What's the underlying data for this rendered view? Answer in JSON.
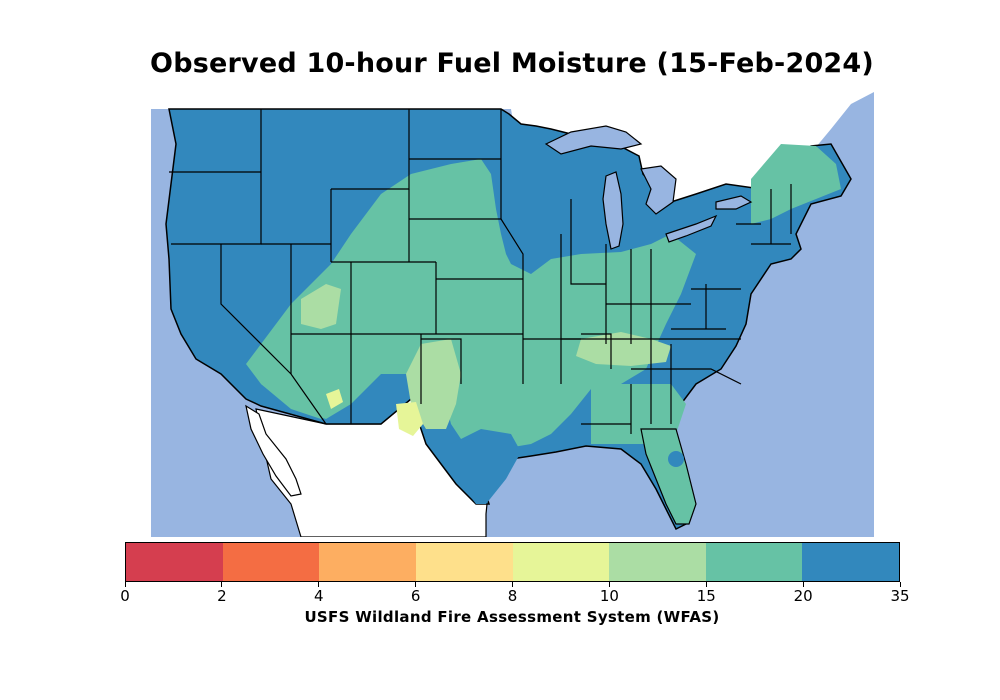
{
  "title": "Observed 10-hour Fuel Moisture (15-Feb-2024)",
  "colors": {
    "water": "#98b5e1",
    "land_outside": "#ffffff",
    "border": "#000000"
  },
  "colorbar": {
    "label": "USFS Wildland Fire Assessment System (WFAS)",
    "bins": [
      {
        "from": "0",
        "to": "2",
        "color": "#d53e4f"
      },
      {
        "from": "2",
        "to": "4",
        "color": "#f46d43"
      },
      {
        "from": "4",
        "to": "6",
        "color": "#fdae61"
      },
      {
        "from": "6",
        "to": "8",
        "color": "#fee08b"
      },
      {
        "from": "8",
        "to": "10",
        "color": "#e6f598"
      },
      {
        "from": "10",
        "to": "15",
        "color": "#abdda4"
      },
      {
        "from": "15",
        "to": "20",
        "color": "#66c2a5"
      },
      {
        "from": "20",
        "to": "35",
        "color": "#3288bd"
      }
    ],
    "tick_labels": [
      "0",
      "2",
      "4",
      "6",
      "8",
      "10",
      "15",
      "20",
      "35"
    ]
  }
}
